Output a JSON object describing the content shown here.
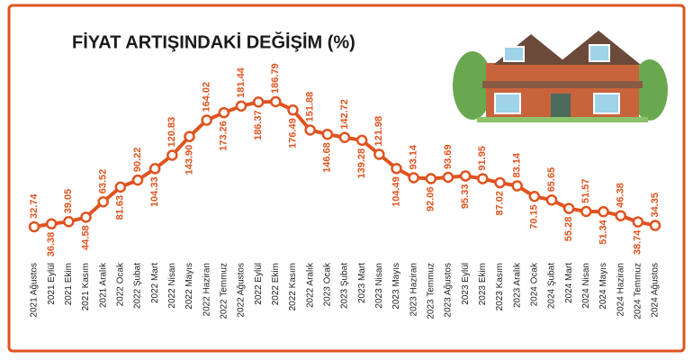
{
  "chart_data": {
    "type": "line",
    "title": "FİYAT ARTIŞINDAKİ DEĞİŞİM (%)",
    "color": "#e0531f",
    "categories": [
      "2021 Ağustos",
      "2021 Eylül",
      "2021 Ekim",
      "2021 Kasım",
      "2021 Aralık",
      "2022 Ocak",
      "2022 Şubat",
      "2022 Mart",
      "2022 Nisan",
      "2022 Mayıs",
      "2022 Haziran",
      "2022 Temmuz",
      "2022 Ağustos",
      "2022 Eylül",
      "2022 Ekim",
      "2022 Kasım",
      "2022 Aralık",
      "2023 Ocak",
      "2023 Şubat",
      "2023 Mart",
      "2023 Nisan",
      "2023 Mayıs",
      "2023 Haziran",
      "2023 Temmuz",
      "2023 Ağustos",
      "2023 Eylül",
      "2023 Ekim",
      "2023 Kasım",
      "2023 Aralık",
      "2024 Ocak",
      "2024 Şubat",
      "2024 Mart",
      "2024 Nisan",
      "2024 Mayıs",
      "2024 Haziran",
      "2024 Temmuz",
      "2024 Ağustos"
    ],
    "values": [
      32.74,
      36.38,
      39.05,
      44.58,
      63.52,
      81.63,
      90.22,
      104.33,
      120.83,
      143.9,
      164.02,
      173.26,
      181.44,
      186.37,
      186.79,
      176.49,
      151.88,
      146.68,
      142.72,
      139.28,
      121.98,
      104.49,
      93.14,
      92.06,
      93.69,
      95.33,
      91.95,
      87.02,
      83.14,
      70.15,
      65.65,
      55.28,
      51.57,
      51.34,
      46.38,
      38.74,
      34.35
    ],
    "value_labels": [
      "32.74",
      "36.38",
      "39.05",
      "44.58",
      "63.52",
      "81.63",
      "90.22",
      "104.33",
      "120.83",
      "143.90",
      "164.02",
      "173.26",
      "181.44",
      "186.37",
      "186.79",
      "176.49",
      "151.88",
      "146.68",
      "142.72",
      "139.28",
      "121.98",
      "104.49",
      "93.14",
      "92.06",
      "93.69",
      "95.33",
      "91.95",
      "87.02",
      "83.14",
      "70.15",
      "65.65",
      "55.28",
      "51.57",
      "51.34",
      "46.38",
      "38.74",
      "34.35"
    ]
  }
}
